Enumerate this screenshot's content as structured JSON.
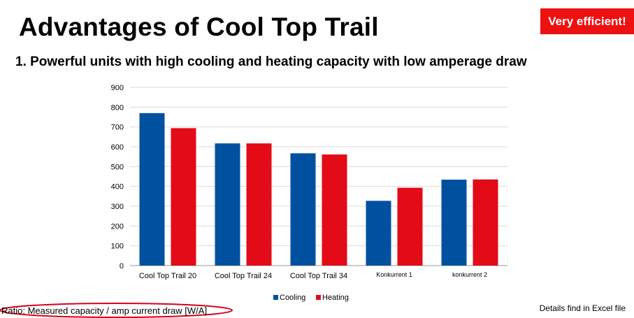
{
  "slide": {
    "title": "Advantages of Cool Top Trail",
    "badge": "Very efficient!",
    "subtitle": "1. Powerful units with high cooling and heating capacity with low amperage draw",
    "ratio_note": "Ratio: Measured capacity / amp current draw [W/A]",
    "details_note": "Details find in Excel file"
  },
  "colors": {
    "cooling": "#0050a0",
    "heating": "#e30b17",
    "badge": "#ee1111",
    "grid": "#d9d9d9",
    "ellipse": "#d9001b"
  },
  "chart_data": {
    "type": "bar",
    "categories": [
      "Cool Top Trail 20",
      "Cool Top Trail 24",
      "Cool Top Trail 34",
      "Konkurrent 1",
      "konkurrent 2"
    ],
    "series": [
      {
        "name": "Cooling",
        "values": [
          770,
          617,
          567,
          327,
          434
        ]
      },
      {
        "name": "Heating",
        "values": [
          694,
          617,
          561,
          393,
          435
        ]
      }
    ],
    "yticks": [
      0,
      100,
      200,
      300,
      400,
      500,
      600,
      700,
      800,
      900
    ],
    "ylim": [
      0,
      900
    ],
    "grid": true,
    "legend": "bottom"
  }
}
